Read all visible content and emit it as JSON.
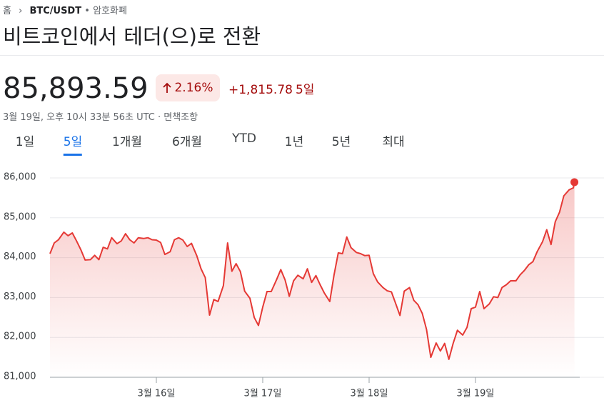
{
  "breadcrumb": {
    "home": "홈",
    "symbol": "BTC/USDT",
    "category": "암호화폐"
  },
  "title": "비트코인에서 테더(으)로 전환",
  "price": "85,893.59",
  "change_pct": "2.16%",
  "change_abs": "+1,815.78",
  "period": "5일",
  "timestamp": "3월 19일, 오후 10시 33분 56초 UTC",
  "disclaimer": "면책조항",
  "tabs": [
    "1일",
    "5일",
    "1개월",
    "6개월",
    "YTD",
    "1년",
    "5년",
    "최대"
  ],
  "selected_tab": 1,
  "chart_data": {
    "type": "line",
    "color": "#e53935",
    "grid": true,
    "xlim": [
      15,
      19.98
    ],
    "ylim": [
      81000,
      86000
    ],
    "xticks": [
      {
        "value": 16,
        "label": "3월 16일"
      },
      {
        "value": 17,
        "label": "3월 17일"
      },
      {
        "value": 18,
        "label": "3월 18일"
      },
      {
        "value": 19,
        "label": "3월 19일"
      }
    ],
    "yticks": [
      {
        "value": 81000,
        "label": "81,000"
      },
      {
        "value": 82000,
        "label": "82,000"
      },
      {
        "value": 83000,
        "label": "83,000"
      },
      {
        "value": 84000,
        "label": "84,000"
      },
      {
        "value": 85000,
        "label": "85,000"
      },
      {
        "value": 86000,
        "label": "86,000"
      }
    ],
    "x": [
      15,
      15.04,
      15.08,
      15.13,
      15.17,
      15.21,
      15.25,
      15.29,
      15.33,
      15.38,
      15.42,
      15.46,
      15.5,
      15.54,
      15.58,
      15.63,
      15.67,
      15.71,
      15.75,
      15.79,
      15.83,
      15.88,
      15.92,
      15.96,
      16,
      16.04,
      16.08,
      16.13,
      16.17,
      16.21,
      16.25,
      16.29,
      16.33,
      16.38,
      16.42,
      16.46,
      16.5,
      16.54,
      16.58,
      16.63,
      16.67,
      16.71,
      16.75,
      16.79,
      16.83,
      16.88,
      16.92,
      16.96,
      17,
      17.04,
      17.08,
      17.13,
      17.17,
      17.21,
      17.25,
      17.29,
      17.33,
      17.38,
      17.42,
      17.46,
      17.5,
      17.54,
      17.58,
      17.63,
      17.67,
      17.71,
      17.75,
      17.79,
      17.83,
      17.88,
      17.92,
      17.96,
      18,
      18.04,
      18.08,
      18.13,
      18.17,
      18.21,
      18.25,
      18.29,
      18.33,
      18.38,
      18.42,
      18.46,
      18.5,
      18.54,
      18.58,
      18.63,
      18.67,
      18.71,
      18.75,
      18.79,
      18.83,
      18.88,
      18.92,
      18.96,
      19,
      19.04,
      19.08,
      19.13,
      19.17,
      19.21,
      19.25,
      19.29,
      19.33,
      19.38,
      19.42,
      19.46,
      19.5,
      19.54,
      19.58,
      19.63,
      19.67,
      19.71,
      19.75,
      19.79,
      19.83,
      19.88,
      19.92,
      19.93
    ],
    "values": [
      84100,
      84370,
      84450,
      84640,
      84550,
      84620,
      84420,
      84200,
      83940,
      83950,
      84060,
      83950,
      84260,
      84220,
      84500,
      84350,
      84420,
      84600,
      84450,
      84370,
      84500,
      84480,
      84500,
      84450,
      84440,
      84380,
      84080,
      84150,
      84450,
      84500,
      84440,
      84280,
      84360,
      84050,
      83720,
      83500,
      82560,
      82950,
      82900,
      83300,
      84370,
      83660,
      83850,
      83650,
      83160,
      82980,
      82500,
      82300,
      82760,
      83150,
      83150,
      83450,
      83700,
      83440,
      83030,
      83420,
      83560,
      83470,
      83720,
      83380,
      83550,
      83320,
      83110,
      82900,
      83560,
      84120,
      84100,
      84520,
      84250,
      84130,
      84100,
      84050,
      84060,
      83600,
      83390,
      83250,
      83170,
      83140,
      82850,
      82550,
      83160,
      83250,
      82930,
      82820,
      82600,
      82200,
      81500,
      81860,
      81660,
      81850,
      81450,
      81850,
      82180,
      82060,
      82250,
      82720,
      82760,
      83150,
      82720,
      82840,
      83020,
      83000,
      83250,
      83320,
      83420,
      83420,
      83570,
      83680,
      83820,
      83900,
      84150,
      84400,
      84700,
      84330,
      84900,
      85140,
      85550,
      85700,
      85750,
      85893.59
    ]
  }
}
